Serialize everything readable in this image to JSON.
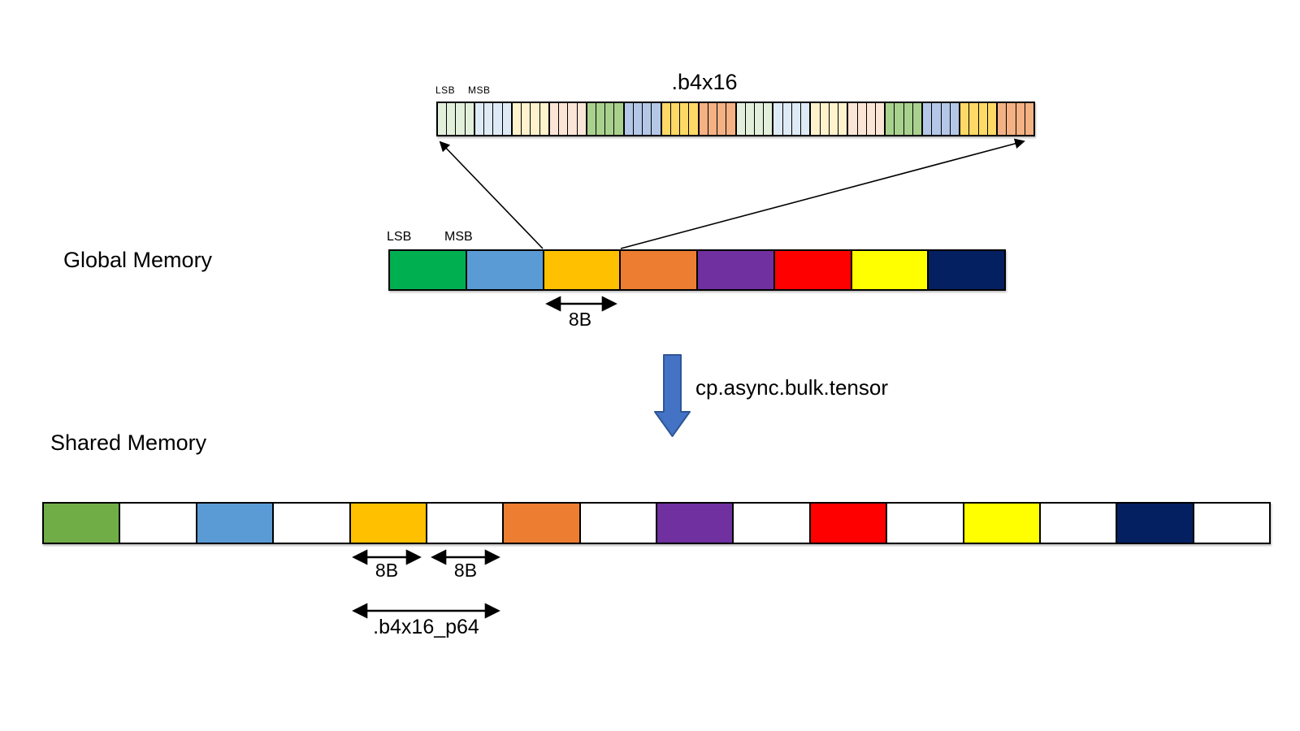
{
  "strip": {
    "title": ".b4x16",
    "lsb_label": "LSB",
    "msb_label": "MSB",
    "cells_per_group": 4,
    "group_colors": [
      "#E2EFDA",
      "#DEEBF7",
      "#FFF2CC",
      "#FBE5D6",
      "#A9D18E",
      "#B4C7E7",
      "#FFD966",
      "#F4B183",
      "#E2EFDA",
      "#DEEBF7",
      "#FFF2CC",
      "#FBE5D6",
      "#A9D18E",
      "#B4C7E7",
      "#FFD966",
      "#F4B183"
    ]
  },
  "global_memory": {
    "label": "Global Memory",
    "lsb_label": "LSB",
    "msb_label": "MSB",
    "block_colors": [
      "#00B050",
      "#5B9BD5",
      "#FFC000",
      "#ED7D31",
      "#7030A0",
      "#FF0000",
      "#FFFF00",
      "#042061"
    ],
    "block_size_label": "8B"
  },
  "transfer": {
    "instruction": "cp.async.bulk.tensor",
    "arrow_fill": "#4472C4",
    "arrow_stroke": "#2F5597"
  },
  "shared_memory": {
    "label": "Shared Memory",
    "block_colors": [
      "#70AD47",
      "#FFFFFF",
      "#5B9BD5",
      "#FFFFFF",
      "#FFC000",
      "#FFFFFF",
      "#ED7D31",
      "#FFFFFF",
      "#7030A0",
      "#FFFFFF",
      "#FF0000",
      "#FFFFFF",
      "#FFFF00",
      "#FFFFFF",
      "#042061",
      "#FFFFFF"
    ],
    "data_size_label": "8B",
    "padding_size_label": "8B",
    "layout_label": ".b4x16_p64"
  }
}
